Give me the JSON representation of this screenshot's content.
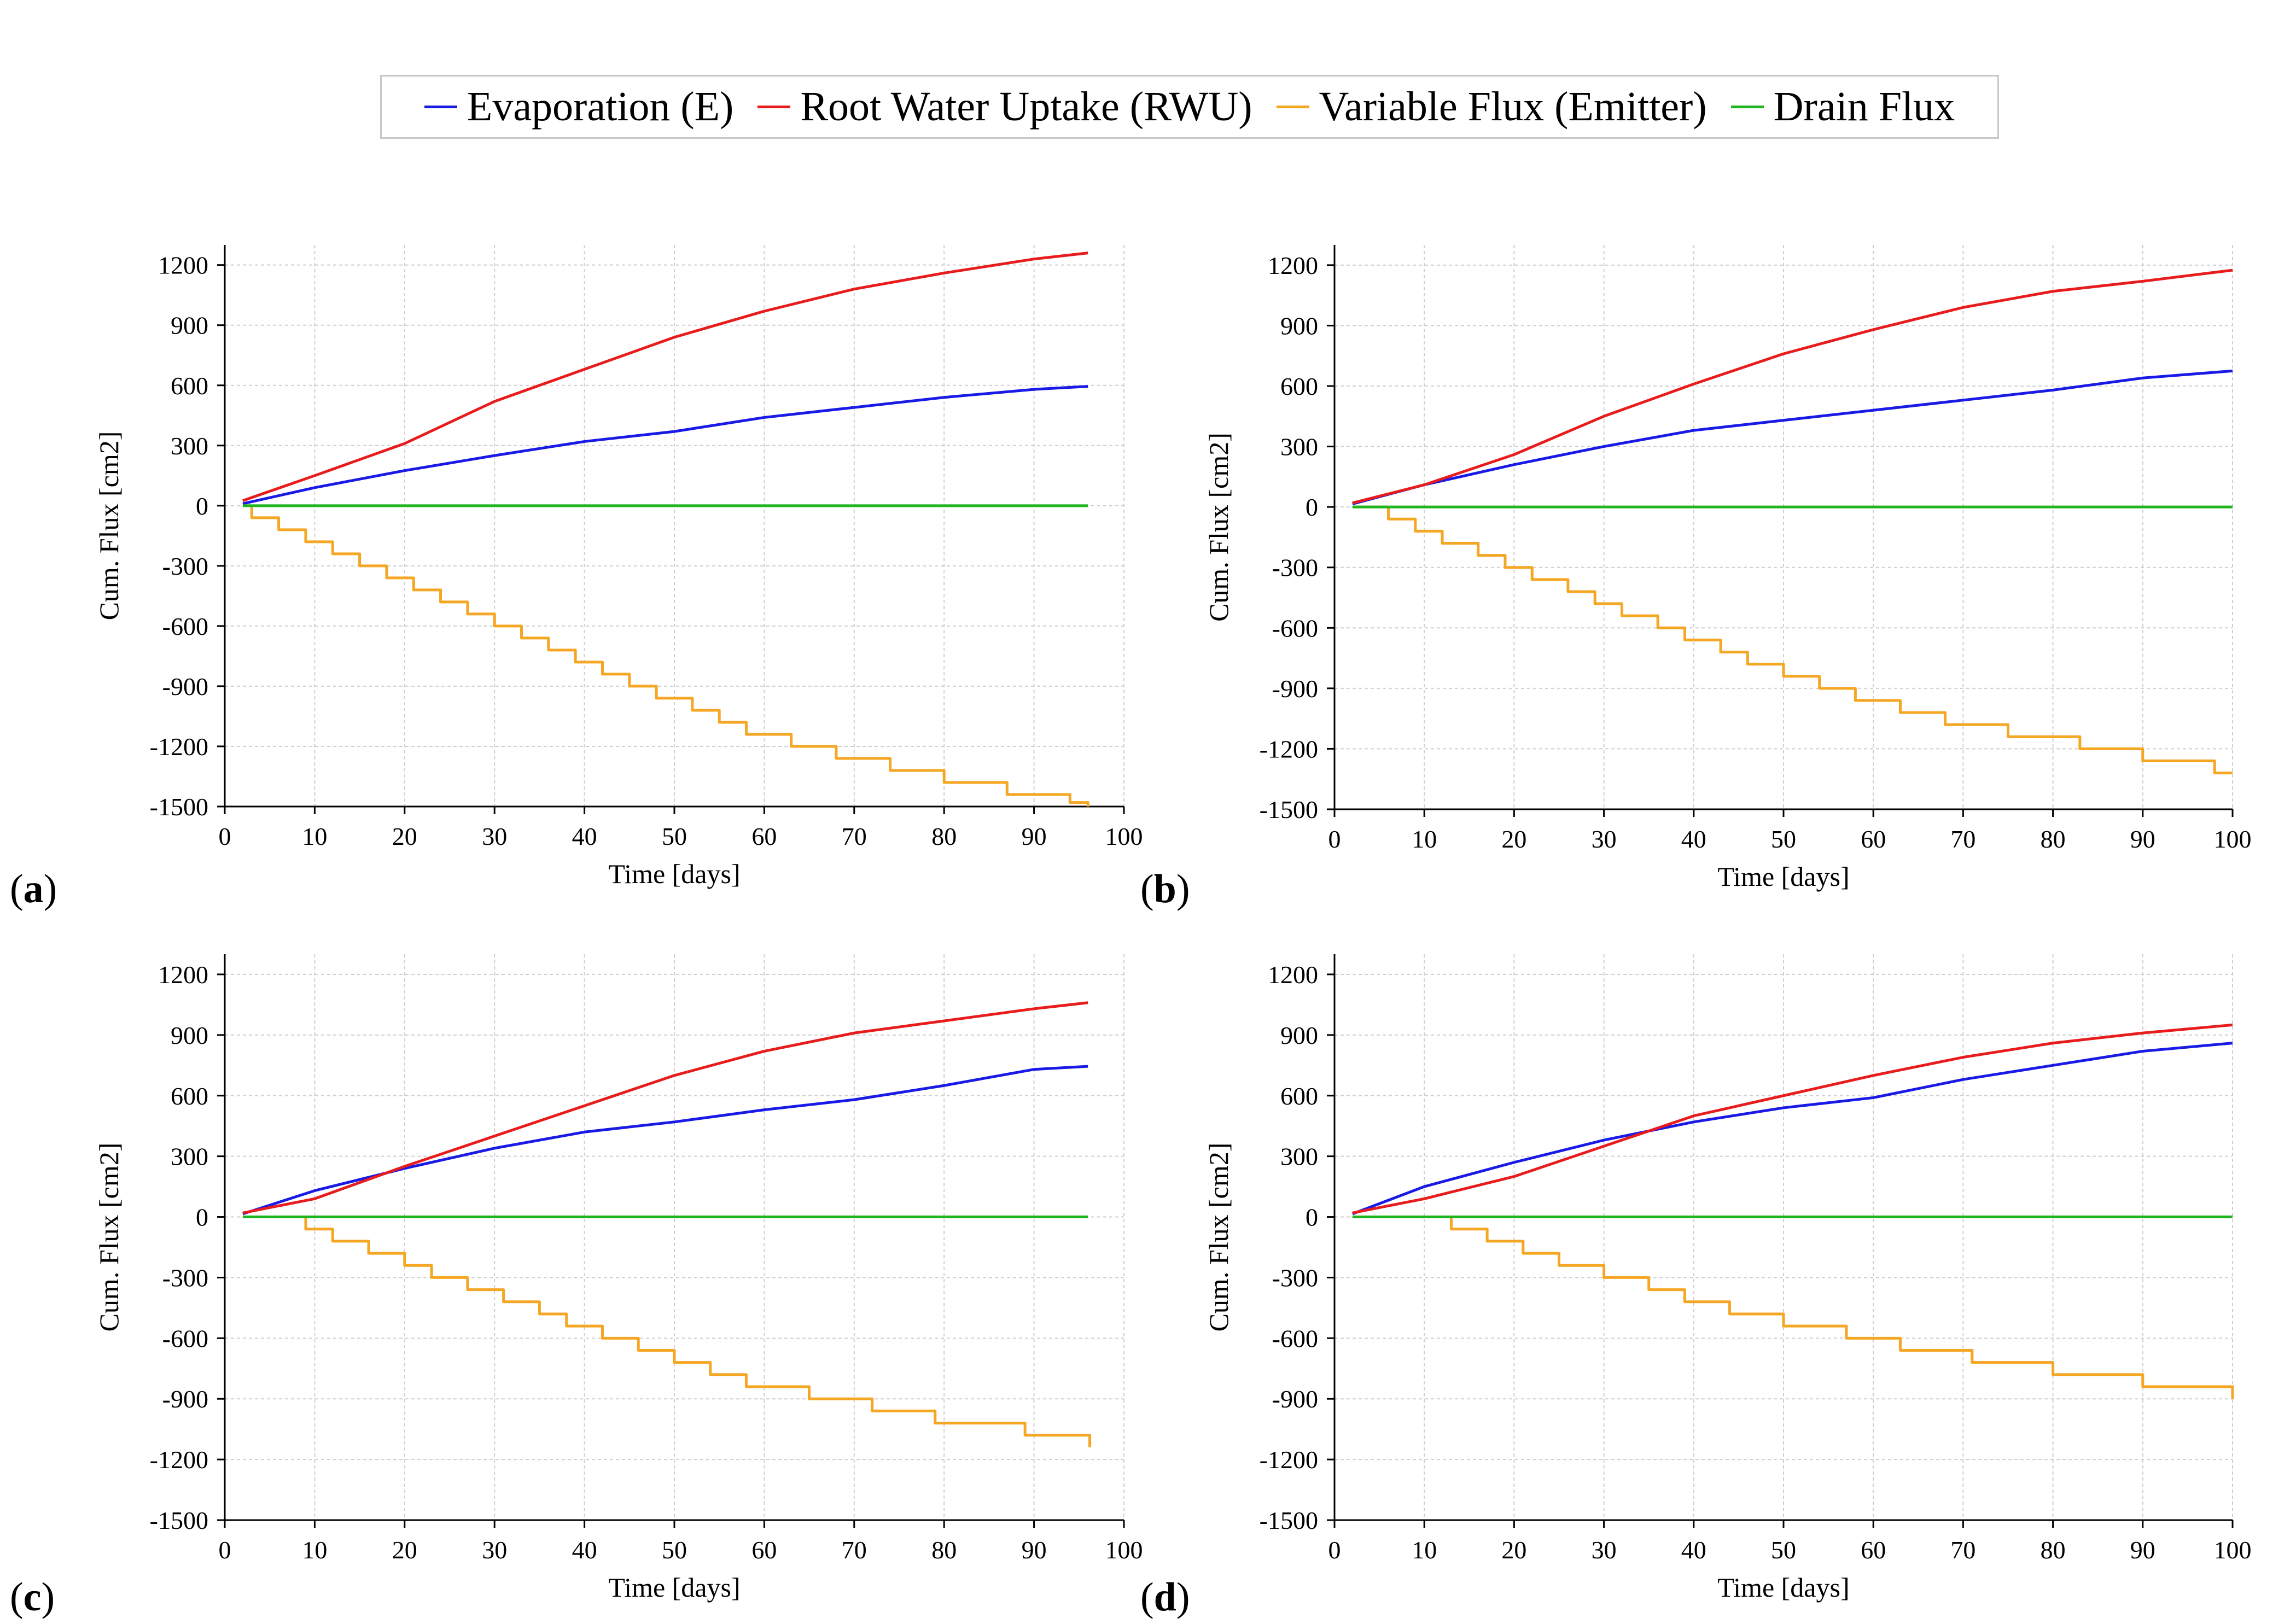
{
  "legend": [
    {
      "label": "Evaporation (E)",
      "color": "#1a1ae6"
    },
    {
      "label": "Root Water Uptake (RWU)",
      "color": "#e81c1c"
    },
    {
      "label": "Variable Flux (Emitter)",
      "color": "#f5a623"
    },
    {
      "label": "Drain Flux",
      "color": "#1fb51f"
    }
  ],
  "chart_data": [
    {
      "type": "line",
      "panel_label": "a",
      "xlabel": "Time [days]",
      "ylabel": "Cum. Flux [cm2]",
      "xlim": [
        0,
        100
      ],
      "ylim": [
        -1500,
        1300
      ],
      "xticks": [
        0,
        10,
        20,
        30,
        40,
        50,
        60,
        70,
        80,
        90,
        100
      ],
      "yticks": [
        -1500,
        -1200,
        -900,
        -600,
        -300,
        0,
        300,
        600,
        900,
        1200
      ],
      "grid": true,
      "series": [
        {
          "name": "Evaporation (E)",
          "color": "#1a1ae6",
          "x": [
            2,
            10,
            20,
            30,
            40,
            50,
            60,
            70,
            80,
            90,
            96
          ],
          "y": [
            10,
            90,
            175,
            250,
            320,
            370,
            440,
            490,
            540,
            580,
            595
          ]
        },
        {
          "name": "Root Water Uptake (RWU)",
          "color": "#e81c1c",
          "x": [
            2,
            10,
            20,
            30,
            40,
            50,
            60,
            70,
            80,
            90,
            96
          ],
          "y": [
            25,
            150,
            310,
            520,
            680,
            840,
            970,
            1080,
            1160,
            1230,
            1260
          ]
        },
        {
          "name": "Variable Flux (Emitter)",
          "color": "#f5a623",
          "step": true,
          "x": [
            2,
            3,
            6,
            9,
            12,
            15,
            18,
            21,
            24,
            27,
            30,
            33,
            36,
            39,
            42,
            45,
            48,
            52,
            55,
            58,
            63,
            68,
            74,
            80,
            87,
            94,
            96
          ],
          "y": [
            0,
            -60,
            -120,
            -180,
            -240,
            -300,
            -360,
            -420,
            -480,
            -540,
            -600,
            -660,
            -720,
            -780,
            -840,
            -900,
            -960,
            -1020,
            -1080,
            -1140,
            -1200,
            -1260,
            -1320,
            -1380,
            -1440,
            -1480,
            -1500
          ]
        },
        {
          "name": "Drain Flux",
          "color": "#1fb51f",
          "x": [
            2,
            96
          ],
          "y": [
            0,
            0
          ]
        }
      ]
    },
    {
      "type": "line",
      "panel_label": "b",
      "xlabel": "Time [days]",
      "ylabel": "Cum. Flux [cm2]",
      "xlim": [
        0,
        100
      ],
      "ylim": [
        -1500,
        1300
      ],
      "xticks": [
        0,
        10,
        20,
        30,
        40,
        50,
        60,
        70,
        80,
        90,
        100
      ],
      "yticks": [
        -1500,
        -1200,
        -900,
        -600,
        -300,
        0,
        300,
        600,
        900,
        1200
      ],
      "grid": true,
      "series": [
        {
          "name": "Evaporation (E)",
          "color": "#1a1ae6",
          "x": [
            2,
            10,
            20,
            30,
            40,
            50,
            60,
            70,
            80,
            90,
            100
          ],
          "y": [
            15,
            110,
            210,
            300,
            380,
            430,
            480,
            530,
            580,
            640,
            675
          ]
        },
        {
          "name": "Root Water Uptake (RWU)",
          "color": "#e81c1c",
          "x": [
            2,
            10,
            20,
            30,
            40,
            50,
            60,
            70,
            80,
            90,
            100
          ],
          "y": [
            20,
            110,
            260,
            450,
            610,
            760,
            880,
            990,
            1070,
            1120,
            1175
          ]
        },
        {
          "name": "Variable Flux (Emitter)",
          "color": "#f5a623",
          "step": true,
          "x": [
            2,
            6,
            9,
            12,
            16,
            19,
            22,
            26,
            29,
            32,
            36,
            39,
            43,
            46,
            50,
            54,
            58,
            63,
            68,
            75,
            83,
            90,
            98,
            100
          ],
          "y": [
            0,
            -60,
            -120,
            -180,
            -240,
            -300,
            -360,
            -420,
            -480,
            -540,
            -600,
            -660,
            -720,
            -780,
            -840,
            -900,
            -960,
            -1020,
            -1080,
            -1140,
            -1200,
            -1260,
            -1320,
            -1320
          ]
        },
        {
          "name": "Drain Flux",
          "color": "#1fb51f",
          "x": [
            2,
            100
          ],
          "y": [
            0,
            0
          ]
        }
      ]
    },
    {
      "type": "line",
      "panel_label": "c",
      "xlabel": "Time [days]",
      "ylabel": "Cum. Flux [cm2]",
      "xlim": [
        0,
        100
      ],
      "ylim": [
        -1500,
        1300
      ],
      "xticks": [
        0,
        10,
        20,
        30,
        40,
        50,
        60,
        70,
        80,
        90,
        100
      ],
      "yticks": [
        -1500,
        -1200,
        -900,
        -600,
        -300,
        0,
        300,
        600,
        900,
        1200
      ],
      "grid": true,
      "series": [
        {
          "name": "Evaporation (E)",
          "color": "#1a1ae6",
          "x": [
            2,
            10,
            20,
            30,
            40,
            50,
            60,
            70,
            80,
            90,
            96
          ],
          "y": [
            15,
            130,
            240,
            340,
            420,
            470,
            530,
            580,
            650,
            730,
            745
          ]
        },
        {
          "name": "Root Water Uptake (RWU)",
          "color": "#e81c1c",
          "x": [
            2,
            10,
            20,
            30,
            40,
            50,
            60,
            70,
            80,
            90,
            96
          ],
          "y": [
            20,
            90,
            250,
            400,
            550,
            700,
            820,
            910,
            970,
            1030,
            1060
          ]
        },
        {
          "name": "Variable Flux (Emitter)",
          "color": "#f5a623",
          "step": true,
          "x": [
            2,
            9,
            12,
            16,
            20,
            23,
            27,
            31,
            35,
            38,
            42,
            46,
            50,
            54,
            58,
            65,
            72,
            79,
            89,
            96,
            96.2
          ],
          "y": [
            0,
            -60,
            -120,
            -180,
            -240,
            -300,
            -360,
            -420,
            -480,
            -540,
            -600,
            -660,
            -720,
            -780,
            -840,
            -900,
            -960,
            -1020,
            -1080,
            -1080,
            -1140
          ]
        },
        {
          "name": "Drain Flux",
          "color": "#1fb51f",
          "x": [
            2,
            96
          ],
          "y": [
            0,
            0
          ]
        }
      ]
    },
    {
      "type": "line",
      "panel_label": "d",
      "xlabel": "Time [days]",
      "ylabel": "Cum. Flux [cm2]",
      "xlim": [
        0,
        100
      ],
      "ylim": [
        -1500,
        1300
      ],
      "xticks": [
        0,
        10,
        20,
        30,
        40,
        50,
        60,
        70,
        80,
        90,
        100
      ],
      "yticks": [
        -1500,
        -1200,
        -900,
        -600,
        -300,
        0,
        300,
        600,
        900,
        1200
      ],
      "grid": true,
      "series": [
        {
          "name": "Evaporation (E)",
          "color": "#1a1ae6",
          "x": [
            2,
            10,
            20,
            30,
            40,
            50,
            60,
            70,
            80,
            90,
            100
          ],
          "y": [
            15,
            150,
            270,
            380,
            470,
            540,
            590,
            680,
            750,
            820,
            860
          ]
        },
        {
          "name": "Root Water Uptake (RWU)",
          "color": "#e81c1c",
          "x": [
            2,
            10,
            20,
            30,
            40,
            50,
            60,
            70,
            80,
            90,
            100
          ],
          "y": [
            20,
            90,
            200,
            350,
            500,
            600,
            700,
            790,
            860,
            910,
            950
          ]
        },
        {
          "name": "Variable Flux (Emitter)",
          "color": "#f5a623",
          "step": true,
          "x": [
            2,
            13,
            17,
            21,
            25,
            30,
            35,
            39,
            44,
            50,
            57,
            63,
            71,
            80,
            90,
            100
          ],
          "y": [
            0,
            -60,
            -120,
            -180,
            -240,
            -300,
            -360,
            -420,
            -480,
            -540,
            -600,
            -660,
            -720,
            -780,
            -840,
            -900
          ]
        },
        {
          "name": "Drain Flux",
          "color": "#1fb51f",
          "x": [
            2,
            100
          ],
          "y": [
            0,
            0
          ]
        }
      ]
    }
  ]
}
